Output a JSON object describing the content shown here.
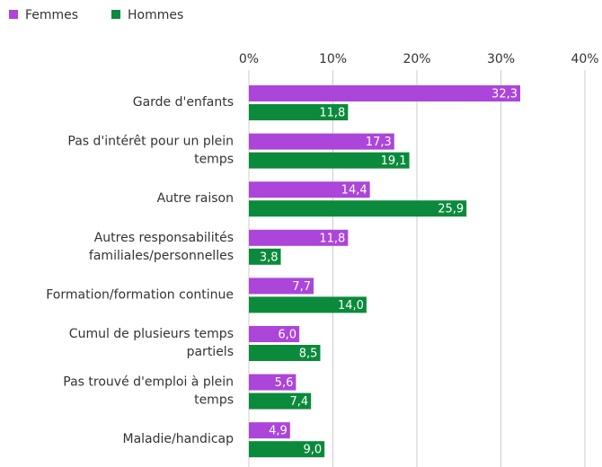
{
  "chart_data": {
    "type": "bar",
    "orientation": "horizontal",
    "categories": [
      "Garde d'enfants",
      "Pas d'intérêt pour un plein\ntemps",
      "Autre raison",
      "Autres responsabilités\nfamiliales/personnelles",
      "Formation/formation continue",
      "Cumul de plusieurs temps\npartiels",
      "Pas trouvé d'emploi à plein\ntemps",
      "Maladie/handicap"
    ],
    "series": [
      {
        "name": "Femmes",
        "color": "#ac45d9",
        "values": [
          32.3,
          17.3,
          14.4,
          11.8,
          7.7,
          6.0,
          5.6,
          4.9
        ],
        "value_labels": [
          "32,3",
          "17,3",
          "14,4",
          "11,8",
          "7,7",
          "6,0",
          "5,6",
          "4,9"
        ]
      },
      {
        "name": "Hommes",
        "color": "#0b8a3c",
        "values": [
          11.8,
          19.1,
          25.9,
          3.8,
          14.0,
          8.5,
          7.4,
          9.0
        ],
        "value_labels": [
          "11,8",
          "19,1",
          "25,9",
          "3,8",
          "14,0",
          "8,5",
          "7,4",
          "9,0"
        ]
      }
    ],
    "xlim": [
      0,
      40
    ],
    "xticks": [
      {
        "value": 0,
        "label": "0%"
      },
      {
        "value": 10,
        "label": "10%"
      },
      {
        "value": 20,
        "label": "20%"
      },
      {
        "value": 30,
        "label": "30%"
      },
      {
        "value": 40,
        "label": "40%"
      }
    ],
    "grid": true,
    "legend": "top-left"
  }
}
